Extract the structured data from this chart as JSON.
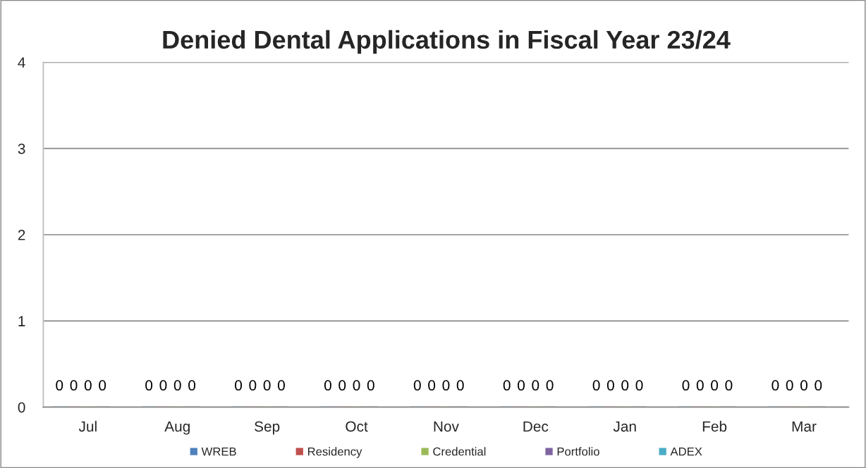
{
  "chart_data": {
    "type": "bar",
    "title": "Denied Dental Applications in Fiscal Year 23/24",
    "categories": [
      "Jul",
      "Aug",
      "Sep",
      "Oct",
      "Nov",
      "Dec",
      "Jan",
      "Feb",
      "Mar"
    ],
    "series": [
      {
        "name": "WREB",
        "color": "#4f81bd",
        "values": [
          0,
          0,
          0,
          0,
          0,
          0,
          0,
          0,
          0
        ]
      },
      {
        "name": "Residency",
        "color": "#c0504d",
        "values": [
          0,
          0,
          0,
          0,
          0,
          0,
          0,
          0,
          0
        ]
      },
      {
        "name": "Credential",
        "color": "#9bbb59",
        "values": [
          0,
          0,
          0,
          0,
          0,
          0,
          0,
          0,
          0
        ]
      },
      {
        "name": "Portfolio",
        "color": "#8064a2",
        "values": [
          0,
          0,
          0,
          0,
          0,
          0,
          0,
          0,
          0
        ]
      },
      {
        "name": "ADEX",
        "color": "#4bacc6",
        "values": [
          null,
          null,
          null,
          null,
          null,
          null,
          null,
          null,
          null
        ]
      }
    ],
    "ylim": [
      0,
      4
    ],
    "yticks": [
      0,
      1,
      2,
      3,
      4
    ],
    "grid": "y",
    "legend": "bottom",
    "data_labels": true
  }
}
